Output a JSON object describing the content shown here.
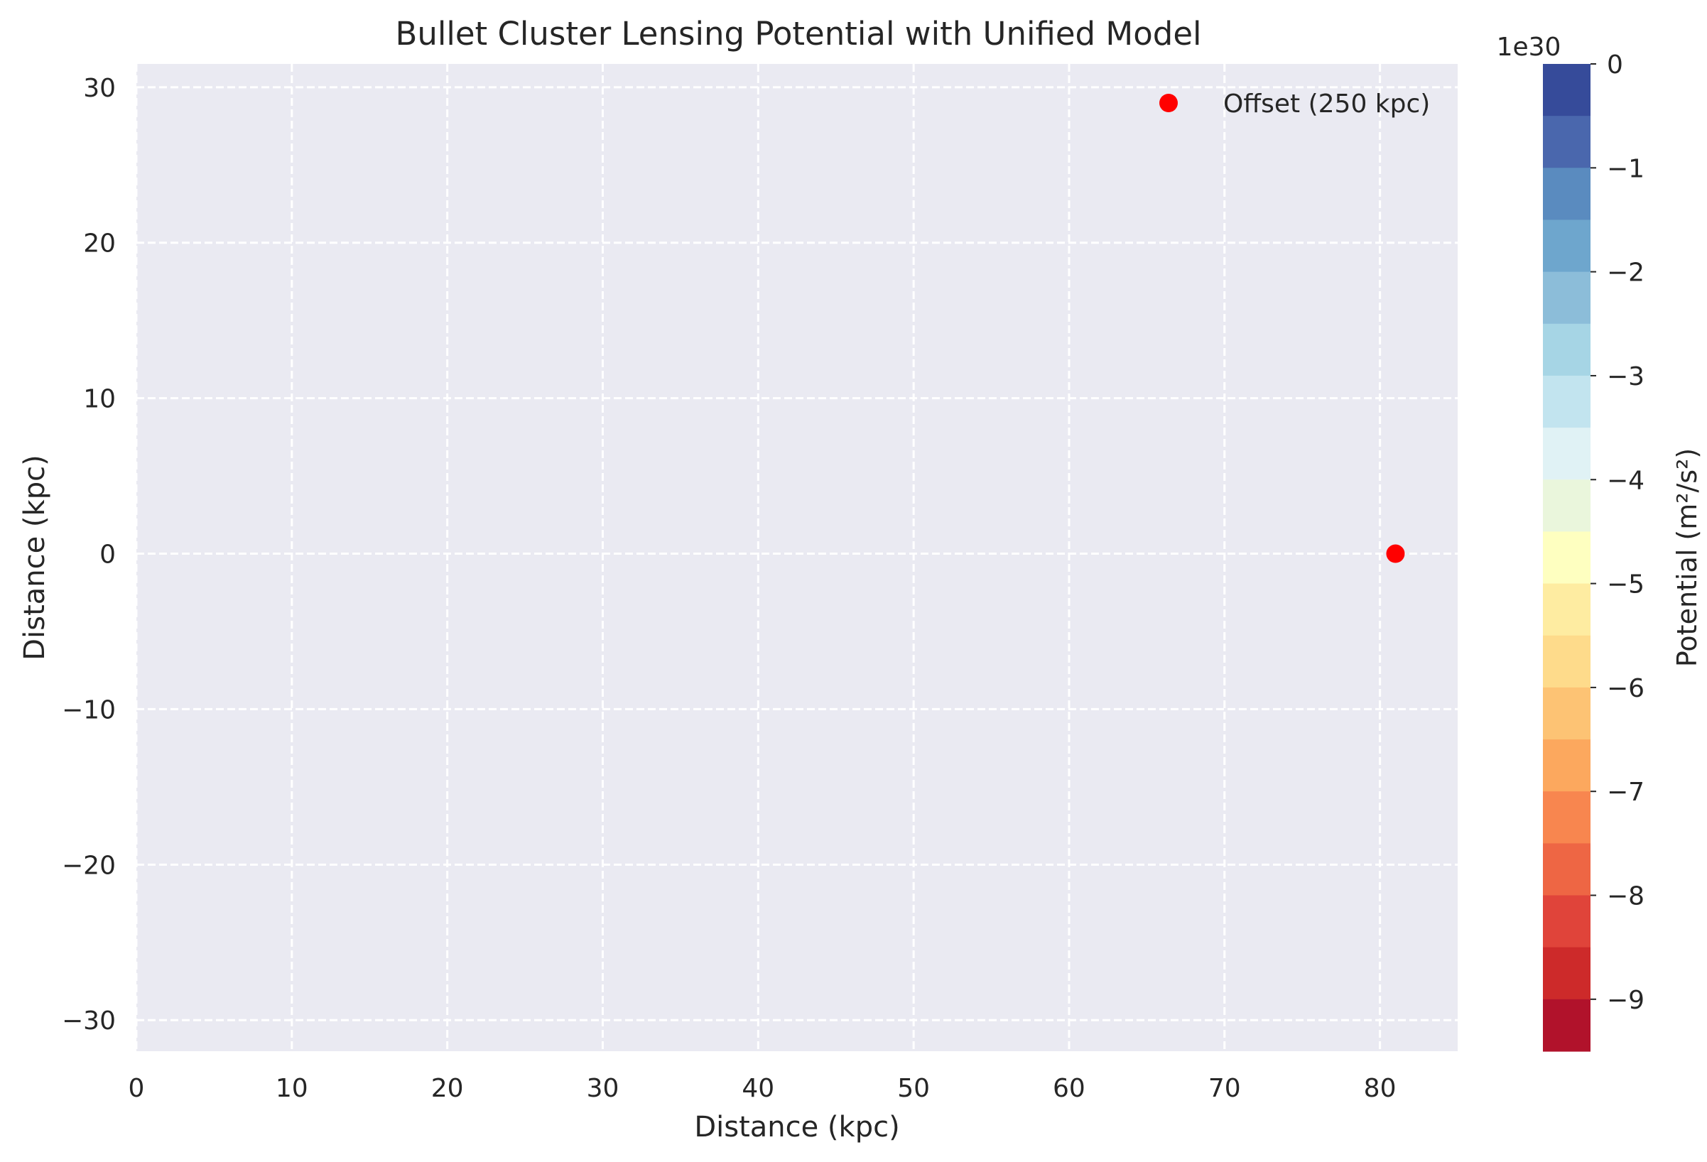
{
  "chart_data": {
    "type": "heatmap",
    "title": "Bullet Cluster Lensing Potential with Unified Model",
    "xlabel": "Distance (kpc)",
    "ylabel": "Distance (kpc)",
    "xlim": [
      0,
      85
    ],
    "ylim": [
      -32,
      31.5
    ],
    "xticks": [
      0,
      10,
      20,
      30,
      40,
      50,
      60,
      70,
      80
    ],
    "xtick_labels": [
      "0",
      "10",
      "20",
      "30",
      "40",
      "50",
      "60",
      "70",
      "80"
    ],
    "yticks": [
      30,
      20,
      10,
      0,
      -10,
      -20,
      -30
    ],
    "ytick_labels": [
      "30",
      "20",
      "10",
      "0",
      "−10",
      "−20",
      "−30"
    ],
    "grid": true,
    "background_color": "#eaeaf2",
    "series": [
      {
        "name": "Offset (250 kpc)",
        "type": "scatter",
        "color": "#ff0000",
        "points": [
          {
            "x": 81,
            "y": 0
          }
        ]
      }
    ],
    "legend": {
      "position": "top-right",
      "entries": [
        {
          "label": "Offset (250 kpc)",
          "color": "#ff0000",
          "marker": "circle"
        }
      ]
    },
    "colorbar": {
      "label": "Potential (m²/s²)",
      "scale_label": "1e30",
      "min": -9.5,
      "max": 0,
      "ticks": [
        0,
        -1,
        -2,
        -3,
        -4,
        -5,
        -6,
        -7,
        -8,
        -9
      ],
      "tick_labels": [
        "0",
        "−1",
        "−2",
        "−3",
        "−4",
        "−5",
        "−6",
        "−7",
        "−8",
        "−9"
      ],
      "colors_top_to_bottom": [
        "#364b9a",
        "#4a67ad",
        "#5a8bbf",
        "#6ea6cd",
        "#8cbdd9",
        "#a6d5e5",
        "#c2e4ef",
        "#e0f2f5",
        "#eaf6dc",
        "#feffc0",
        "#feeca1",
        "#fedb8b",
        "#fdc374",
        "#fca85e",
        "#f8864f",
        "#ee6644",
        "#e0443a",
        "#cd2a2a",
        "#b1122b"
      ]
    }
  }
}
